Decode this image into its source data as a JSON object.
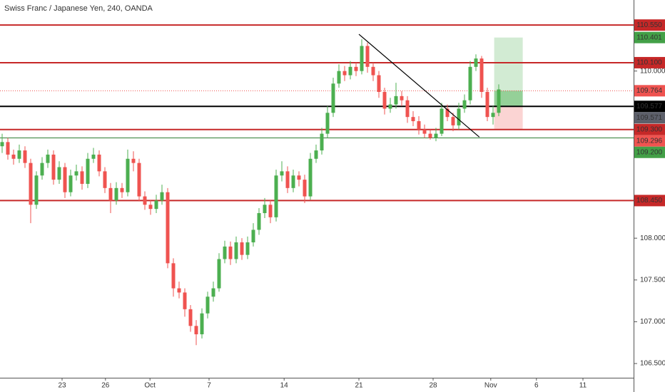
{
  "chart_data": {
    "type": "candlestick",
    "title": "Swiss Franc / Japanese Yen, 240, OANDA",
    "up_color": "#4caf50",
    "down_color": "#ef5350",
    "open": [
      109.1,
      109.15,
      109.0,
      108.95,
      109.05,
      108.9,
      108.4,
      108.75,
      108.9,
      109.0,
      108.7,
      108.85,
      108.55,
      108.75,
      108.8,
      108.65,
      108.95,
      109.0,
      108.8,
      108.6,
      108.45,
      108.6,
      108.55,
      108.95,
      108.9,
      108.5,
      108.4,
      108.35,
      108.45,
      108.55,
      107.7,
      107.4,
      107.35,
      107.15,
      106.95,
      106.85,
      107.1,
      107.3,
      107.4,
      107.75,
      107.9,
      107.75,
      107.95,
      107.8,
      107.95,
      108.1,
      108.3,
      108.4,
      108.25,
      108.75,
      108.8,
      108.6,
      108.75,
      108.7,
      108.5,
      108.95,
      109.05,
      109.25,
      109.5,
      109.85,
      110.0,
      109.95,
      110.05,
      110.0,
      110.3,
      110.05,
      109.95,
      109.75,
      109.55,
      109.6,
      109.7,
      109.65,
      109.45,
      109.4,
      109.3,
      109.25,
      109.2,
      109.25,
      109.55,
      109.45,
      109.35,
      109.55,
      109.65,
      110.05,
      110.15,
      109.75,
      109.45,
      109.5
    ],
    "high": [
      109.25,
      109.2,
      109.06,
      109.12,
      109.1,
      108.95,
      108.8,
      108.97,
      109.06,
      109.05,
      108.92,
      108.9,
      108.82,
      108.88,
      108.86,
      109.02,
      109.08,
      109.05,
      108.85,
      108.66,
      108.67,
      108.66,
      109.06,
      109.04,
      108.95,
      108.56,
      108.46,
      108.52,
      108.64,
      108.6,
      107.76,
      107.48,
      107.4,
      107.2,
      107.02,
      107.16,
      107.36,
      107.48,
      107.82,
      107.97,
      107.96,
      108.02,
      108.0,
      108.02,
      108.18,
      108.36,
      108.48,
      108.46,
      108.82,
      108.92,
      108.86,
      108.82,
      108.8,
      108.76,
      109.02,
      109.12,
      109.32,
      109.58,
      109.92,
      110.08,
      110.06,
      110.12,
      110.1,
      110.38,
      110.34,
      110.1,
      110.0,
      109.8,
      109.68,
      109.86,
      109.76,
      109.7,
      109.52,
      109.46,
      109.36,
      109.3,
      109.32,
      109.62,
      109.6,
      109.5,
      109.62,
      109.72,
      110.12,
      110.2,
      110.18,
      109.8,
      109.58,
      109.84
    ],
    "low": [
      109.02,
      108.94,
      108.88,
      108.9,
      108.84,
      108.18,
      108.35,
      108.7,
      108.84,
      108.64,
      108.65,
      108.48,
      108.5,
      108.69,
      108.58,
      108.6,
      108.9,
      108.74,
      108.54,
      108.3,
      108.4,
      108.48,
      108.5,
      108.8,
      108.44,
      108.34,
      108.28,
      108.3,
      108.4,
      107.64,
      107.3,
      107.28,
      107.06,
      106.88,
      106.72,
      106.8,
      107.04,
      107.24,
      107.36,
      107.7,
      107.68,
      107.7,
      107.74,
      107.75,
      107.9,
      108.04,
      108.24,
      108.18,
      108.2,
      108.68,
      108.54,
      108.55,
      108.62,
      108.42,
      108.46,
      108.9,
      109.0,
      109.2,
      109.45,
      109.8,
      109.88,
      109.9,
      109.94,
      109.96,
      109.98,
      109.88,
      109.68,
      109.48,
      109.5,
      109.55,
      109.58,
      109.38,
      109.34,
      109.24,
      109.2,
      109.18,
      109.16,
      109.22,
      109.4,
      109.28,
      109.3,
      109.5,
      109.6,
      110.0,
      109.68,
      109.4,
      109.36,
      109.46
    ],
    "close": [
      109.15,
      109.0,
      108.95,
      109.05,
      108.9,
      108.4,
      108.75,
      108.9,
      109.0,
      108.7,
      108.85,
      108.55,
      108.75,
      108.8,
      108.65,
      108.95,
      109.0,
      108.8,
      108.6,
      108.45,
      108.6,
      108.55,
      108.95,
      108.9,
      108.5,
      108.4,
      108.35,
      108.45,
      108.55,
      107.7,
      107.4,
      107.35,
      107.15,
      106.95,
      106.85,
      107.1,
      107.3,
      107.4,
      107.75,
      107.9,
      107.75,
      107.95,
      107.8,
      107.95,
      108.1,
      108.3,
      108.4,
      108.25,
      108.75,
      108.8,
      108.6,
      108.75,
      108.7,
      108.5,
      108.95,
      109.05,
      109.25,
      109.5,
      109.85,
      110.0,
      109.95,
      110.05,
      110.0,
      110.3,
      110.05,
      109.95,
      109.75,
      109.55,
      109.6,
      109.7,
      109.65,
      109.45,
      109.4,
      109.3,
      109.25,
      109.2,
      109.25,
      109.55,
      109.45,
      109.35,
      109.55,
      109.65,
      110.05,
      110.15,
      109.75,
      109.45,
      109.5,
      109.78
    ],
    "xlim": [
      -0.375,
      110.625
    ],
    "ylim": [
      106.33,
      110.85
    ],
    "xticks": [
      {
        "value": 10.5,
        "label": "23"
      },
      {
        "value": 18.1,
        "label": "26"
      },
      {
        "value": 25.9,
        "label": "Oct"
      },
      {
        "value": 36.25,
        "label": "7"
      },
      {
        "value": 49.4,
        "label": "14"
      },
      {
        "value": 62.5,
        "label": "21"
      },
      {
        "value": 75.5,
        "label": "28"
      },
      {
        "value": 85.6,
        "label": "Nov"
      },
      {
        "value": 93.6,
        "label": "6"
      },
      {
        "value": 101.75,
        "label": "11"
      }
    ],
    "yticks": [
      {
        "value": 110,
        "label": "110.000"
      },
      {
        "value": 108,
        "label": "108.000"
      },
      {
        "value": 107.5,
        "label": "107.500"
      },
      {
        "value": 107,
        "label": "107.000"
      },
      {
        "value": 106.5,
        "label": "106.500"
      }
    ],
    "lines": [
      {
        "value": 110.55,
        "color": "#c62828",
        "style": "solid",
        "width": 2
      },
      {
        "value": 110.1,
        "color": "#c62828",
        "style": "solid",
        "width": 2
      },
      {
        "value": 109.764,
        "color": "#ef5350",
        "style": "dotted",
        "width": 1
      },
      {
        "value": 109.577,
        "color": "#000000",
        "style": "solid",
        "width": 2
      },
      {
        "value": 109.3,
        "color": "#c62828",
        "style": "solid",
        "width": 2
      },
      {
        "value": 109.2,
        "color": "#2e7d32",
        "style": "solid",
        "width": 1
      },
      {
        "value": 108.45,
        "color": "#c62828",
        "style": "solid",
        "width": 2
      }
    ],
    "price_labels": [
      {
        "value": 110.55,
        "label": "110.550",
        "color": "#c62828"
      },
      {
        "value": 110.401,
        "label": "110.401",
        "color": "#43a047"
      },
      {
        "value": 110.1,
        "label": "110.100",
        "color": "#c62828"
      },
      {
        "value": 109.764,
        "label": "109.764",
        "color": "#ef5350"
      },
      {
        "value": 109.577,
        "label": "109.577",
        "color": "#000000"
      },
      {
        "value": 109.571,
        "label": "109.571",
        "color": "#5d606b"
      },
      {
        "value": 109.3,
        "label": "109.300",
        "color": "#c62828"
      },
      {
        "value": 109.296,
        "label": "109.296",
        "color": "#ef5350"
      },
      {
        "value": 109.2,
        "label": "109.200",
        "color": "#43a047"
      },
      {
        "value": 108.45,
        "label": "108.450",
        "color": "#c62828"
      }
    ],
    "position": {
      "entry": 109.577,
      "target": 110.401,
      "stop": 109.3,
      "current": 109.764
    },
    "trendline": {
      "x": [
        62.5,
        83.6
      ],
      "y": [
        110.44,
        109.21
      ]
    }
  }
}
